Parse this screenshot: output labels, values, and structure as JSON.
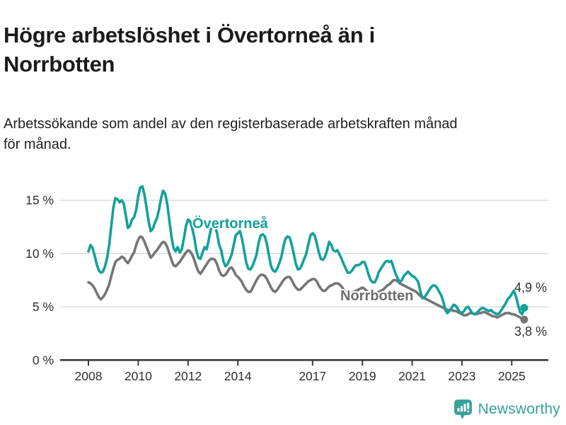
{
  "header": {
    "title": "Högre arbetslöshet i Övertorneå än i Norrbotten",
    "title_lines": [
      "Högre arbetslöshet i Övertorneå än i",
      "Norrbotten"
    ],
    "subtitle": "Arbetssökande som andel av den registerbaserade arbetskraften månad för månad.",
    "subtitle_lines": [
      "Arbetssökande som andel av den registerbaserade arbetskraften månad",
      "för månad."
    ]
  },
  "footer": {
    "brand": "Newsworthy",
    "logo_icon": "bar-chart-speech-bubble-icon",
    "brand_color": "#35a199"
  },
  "chart_data": {
    "type": "line",
    "unit": "%",
    "frequency": "monthly",
    "x_start": "2008-01",
    "x_end": "2025-07",
    "ylim": [
      0,
      17
    ],
    "grid": "horizontal",
    "y_ticks": [
      0,
      5,
      10,
      15
    ],
    "y_tick_labels": [
      "0 %",
      "5 %",
      "10 %",
      "15 %"
    ],
    "x_ticks": [
      2008,
      2010,
      2012,
      2014,
      2017,
      2019,
      2021,
      2023,
      2025
    ],
    "x_tick_labels": [
      "2008",
      "2010",
      "2012",
      "2014",
      "2017",
      "2019",
      "2021",
      "2023",
      "2025"
    ],
    "series": [
      {
        "name": "Norrbotten",
        "slug": "norrbotten",
        "color": "#757575",
        "end_label": "3,8 %",
        "end_value": 3.8,
        "values": [
          7.3,
          7.2,
          7.0,
          6.7,
          6.3,
          5.9,
          5.7,
          5.9,
          6.2,
          6.6,
          7.1,
          7.9,
          8.6,
          9.2,
          9.4,
          9.5,
          9.7,
          9.6,
          9.3,
          9.1,
          9.4,
          9.8,
          10.1,
          10.8,
          11.3,
          11.6,
          11.5,
          11.1,
          10.6,
          10.1,
          9.6,
          9.8,
          10.1,
          10.3,
          10.6,
          10.9,
          11.1,
          11.0,
          10.6,
          10.0,
          9.4,
          8.9,
          8.8,
          9.0,
          9.2,
          9.5,
          9.8,
          10.1,
          10.3,
          10.2,
          9.9,
          9.4,
          8.8,
          8.3,
          8.1,
          8.4,
          8.7,
          9.0,
          9.3,
          9.5,
          9.5,
          9.4,
          9.0,
          8.4,
          8.0,
          7.9,
          8.0,
          8.3,
          8.6,
          8.7,
          8.4,
          8.0,
          7.8,
          7.6,
          7.3,
          6.9,
          6.6,
          6.4,
          6.4,
          6.7,
          7.1,
          7.5,
          7.8,
          8.0,
          8.0,
          7.9,
          7.6,
          7.2,
          6.8,
          6.5,
          6.4,
          6.6,
          6.9,
          7.2,
          7.5,
          7.7,
          7.8,
          7.8,
          7.5,
          7.1,
          6.8,
          6.6,
          6.6,
          6.8,
          7.0,
          7.2,
          7.4,
          7.5,
          7.6,
          7.6,
          7.4,
          7.0,
          6.7,
          6.5,
          6.5,
          6.7,
          6.9,
          7.0,
          7.1,
          7.2,
          7.2,
          7.1,
          6.9,
          6.6,
          6.3,
          6.1,
          6.1,
          6.3,
          6.4,
          6.5,
          6.6,
          6.7,
          6.8,
          6.7,
          6.5,
          6.3,
          6.1,
          6.0,
          6.1,
          6.3,
          6.4,
          6.5,
          6.6,
          6.8,
          7.0,
          7.1,
          7.3,
          7.5,
          7.5,
          7.4,
          7.2,
          7.1,
          7.0,
          6.9,
          6.8,
          6.7,
          6.6,
          6.5,
          6.4,
          6.2,
          6.0,
          5.9,
          5.8,
          5.7,
          5.6,
          5.5,
          5.4,
          5.3,
          5.2,
          5.1,
          5.0,
          4.9,
          4.8,
          4.7,
          4.7,
          4.7,
          4.6,
          4.6,
          4.5,
          4.4,
          4.3,
          4.2,
          4.2,
          4.3,
          4.4,
          4.4,
          4.3,
          4.3,
          4.4,
          4.4,
          4.5,
          4.5,
          4.4,
          4.3,
          4.2,
          4.1,
          4.1,
          4.0,
          4.1,
          4.2,
          4.3,
          4.4,
          4.4,
          4.4,
          4.3,
          4.3,
          4.2,
          4.1,
          4.0,
          3.9,
          3.8
        ]
      },
      {
        "name": "Övertorneå",
        "slug": "overtornea",
        "color": "#12a19a",
        "end_label": "4,9 %",
        "end_value": 4.9,
        "values": [
          10.2,
          10.8,
          10.5,
          9.8,
          9.0,
          8.4,
          8.2,
          8.3,
          8.8,
          9.6,
          10.8,
          12.6,
          14.3,
          15.2,
          15.1,
          14.8,
          15.0,
          14.7,
          13.6,
          12.4,
          12.6,
          13.2,
          13.4,
          14.1,
          15.4,
          16.2,
          16.3,
          15.5,
          14.3,
          13.0,
          12.1,
          12.3,
          12.9,
          13.3,
          14.1,
          15.2,
          15.9,
          15.6,
          14.6,
          13.1,
          11.6,
          10.5,
          10.2,
          10.6,
          10.1,
          10.4,
          11.4,
          12.6,
          13.2,
          13.0,
          12.4,
          11.5,
          10.3,
          9.6,
          9.5,
          10.1,
          10.6,
          10.4,
          11.3,
          12.3,
          12.5,
          12.6,
          11.9,
          10.8,
          10.3,
          9.3,
          8.8,
          9.0,
          9.4,
          9.9,
          10.8,
          11.7,
          11.9,
          12.1,
          11.4,
          10.3,
          9.2,
          8.6,
          8.5,
          8.8,
          9.3,
          9.9,
          11.0,
          11.7,
          11.8,
          11.6,
          10.9,
          9.8,
          8.8,
          8.4,
          8.3,
          8.6,
          9.1,
          9.7,
          10.7,
          11.4,
          11.6,
          11.5,
          10.8,
          9.9,
          9.0,
          8.5,
          8.6,
          9.0,
          9.5,
          10.0,
          10.9,
          11.7,
          11.9,
          11.7,
          11.0,
          10.1,
          9.5,
          9.4,
          9.7,
          10.3,
          11.1,
          10.8,
          10.3,
          10.2,
          10.3,
          9.9,
          9.5,
          9.0,
          8.6,
          8.2,
          8.2,
          8.4,
          8.7,
          8.9,
          8.9,
          9.0,
          9.2,
          9.2,
          8.7,
          8.0,
          7.5,
          7.3,
          7.3,
          7.7,
          8.3,
          8.6,
          8.9,
          9.2,
          9.3,
          9.2,
          9.3,
          8.7,
          8.1,
          7.7,
          7.3,
          7.5,
          7.9,
          8.1,
          8.3,
          8.1,
          7.9,
          7.8,
          7.6,
          7.3,
          6.4,
          5.8,
          5.9,
          6.2,
          6.5,
          6.8,
          7.0,
          7.0,
          6.8,
          6.4,
          6.1,
          5.5,
          4.7,
          4.4,
          4.6,
          4.9,
          5.2,
          5.1,
          4.8,
          4.5,
          4.4,
          4.6,
          4.9,
          5.0,
          4.7,
          4.4,
          4.3,
          4.4,
          4.6,
          4.8,
          4.9,
          4.8,
          4.7,
          4.6,
          4.7,
          4.5,
          4.4,
          4.3,
          4.4,
          4.7,
          5.0,
          5.3,
          5.7,
          5.9,
          6.2,
          6.5,
          6.0,
          5.2,
          4.5,
          4.3,
          4.9
        ]
      }
    ]
  }
}
